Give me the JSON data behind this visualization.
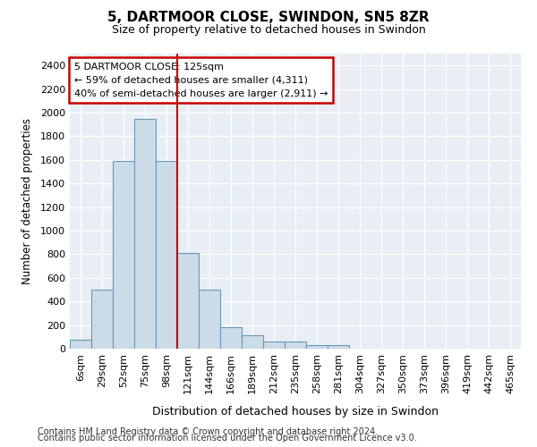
{
  "title": "5, DARTMOOR CLOSE, SWINDON, SN5 8ZR",
  "subtitle": "Size of property relative to detached houses in Swindon",
  "xlabel": "Distribution of detached houses by size in Swindon",
  "ylabel": "Number of detached properties",
  "footnote1": "Contains HM Land Registry data © Crown copyright and database right 2024.",
  "footnote2": "Contains public sector information licensed under the Open Government Licence v3.0.",
  "annotation_line1": "5 DARTMOOR CLOSE: 125sqm",
  "annotation_line2": "← 59% of detached houses are smaller (4,311)",
  "annotation_line3": "40% of semi-detached houses are larger (2,911) →",
  "bar_color": "#ccdbe8",
  "bar_edge_color": "#6699bb",
  "redline_color": "#cc0000",
  "annotation_box_edgecolor": "#cc0000",
  "background_color": "#e8eef4",
  "bins": [
    "6sqm",
    "29sqm",
    "52sqm",
    "75sqm",
    "98sqm",
    "121sqm",
    "144sqm",
    "166sqm",
    "189sqm",
    "212sqm",
    "235sqm",
    "258sqm",
    "281sqm",
    "304sqm",
    "327sqm",
    "350sqm",
    "373sqm",
    "396sqm",
    "419sqm",
    "442sqm",
    "465sqm"
  ],
  "values": [
    75,
    500,
    1590,
    1950,
    1590,
    810,
    500,
    180,
    110,
    60,
    60,
    30,
    30,
    0,
    0,
    0,
    0,
    0,
    0,
    0,
    0
  ],
  "ylim": [
    0,
    2500
  ],
  "yticks": [
    0,
    200,
    400,
    600,
    800,
    1000,
    1200,
    1400,
    1600,
    1800,
    2000,
    2200,
    2400
  ],
  "redline_bin_index": 4.5,
  "fig_width": 6.0,
  "fig_height": 5.0,
  "dpi": 100
}
